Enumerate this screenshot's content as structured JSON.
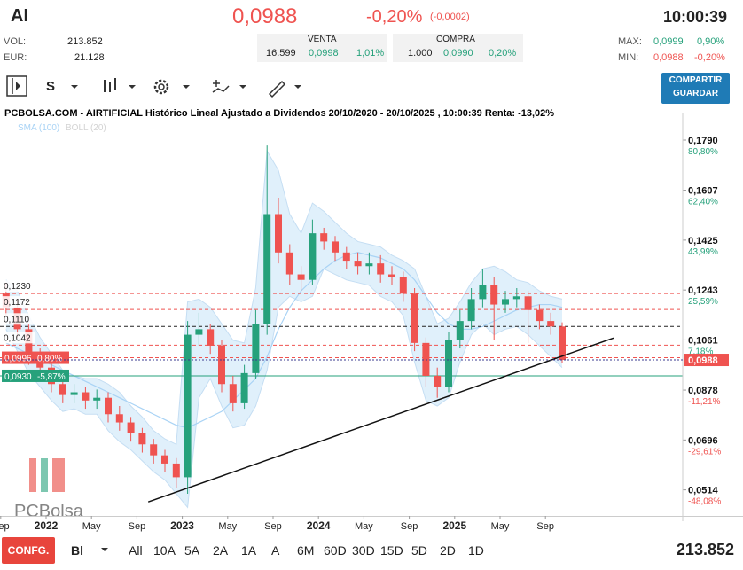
{
  "header": {
    "symbol": "AI",
    "price": "0,0988",
    "change_pct": "-0,20%",
    "change_abs": "(-0,0002)",
    "time": "10:00:39"
  },
  "stats": {
    "vol_label": "VOL:",
    "vol": "213.852",
    "eur_label": "EUR:",
    "eur": "21.128",
    "venta": {
      "label": "VENTA",
      "qty": "16.599",
      "price": "0,0998",
      "pct": "1,01%"
    },
    "compra": {
      "label": "COMPRA",
      "qty": "1.000",
      "price": "0,0990",
      "pct": "0,20%"
    },
    "max": {
      "label": "MAX:",
      "price": "0,0999",
      "pct": "0,90%"
    },
    "min": {
      "label": "MIN:",
      "price": "0,0988",
      "pct": "-0,20%"
    }
  },
  "toolbar": {
    "period": "S",
    "button": [
      "COMPARTIR",
      "GUARDAR"
    ]
  },
  "chart_data": {
    "type": "candlestick",
    "title": "PCBOLSA.COM - AIRTIFICIAL Histórico Lineal Ajustado a Dividendos 20/10/2020 - 20/10/2025 , 10:00:39 Renta: -13,02%",
    "watermark": "PCBolsa",
    "up_color": "#26a17b",
    "down_color": "#ef5350",
    "x": [
      "2021-09",
      "2021-10",
      "2021-11",
      "2021-12",
      "2022-01",
      "2022-02",
      "2022-03",
      "2022-04",
      "2022-05",
      "2022-06",
      "2022-07",
      "2022-08",
      "2022-09",
      "2022-10",
      "2022-11",
      "2022-12",
      "2023-01",
      "2023-02",
      "2023-03",
      "2023-04",
      "2023-05",
      "2023-06",
      "2023-07",
      "2023-08",
      "2023-09",
      "2023-10",
      "2023-11",
      "2023-12",
      "2024-01",
      "2024-02",
      "2024-03",
      "2024-04",
      "2024-05",
      "2024-06",
      "2024-07",
      "2024-08",
      "2024-09",
      "2024-10",
      "2024-11",
      "2024-12",
      "2025-01",
      "2025-02",
      "2025-03",
      "2025-04",
      "2025-05",
      "2025-06",
      "2025-07",
      "2025-08",
      "2025-09",
      "2025-10"
    ],
    "open": [
      0.123,
      0.118,
      0.11,
      0.1,
      0.096,
      0.09,
      0.086,
      0.087,
      0.084,
      0.085,
      0.079,
      0.076,
      0.072,
      0.068,
      0.064,
      0.061,
      0.056,
      0.108,
      0.11,
      0.104,
      0.09,
      0.083,
      0.094,
      0.112,
      0.152,
      0.138,
      0.13,
      0.128,
      0.145,
      0.142,
      0.138,
      0.135,
      0.133,
      0.134,
      0.13,
      0.129,
      0.123,
      0.105,
      0.093,
      0.089,
      0.106,
      0.113,
      0.121,
      0.126,
      0.119,
      0.121,
      0.122,
      0.117,
      0.113,
      0.111
    ],
    "high": [
      0.127,
      0.121,
      0.112,
      0.103,
      0.098,
      0.093,
      0.09,
      0.089,
      0.088,
      0.087,
      0.082,
      0.078,
      0.074,
      0.07,
      0.066,
      0.063,
      0.113,
      0.116,
      0.112,
      0.106,
      0.093,
      0.097,
      0.117,
      0.177,
      0.158,
      0.141,
      0.133,
      0.15,
      0.147,
      0.144,
      0.14,
      0.138,
      0.138,
      0.137,
      0.133,
      0.131,
      0.125,
      0.107,
      0.096,
      0.109,
      0.117,
      0.125,
      0.132,
      0.129,
      0.124,
      0.125,
      0.124,
      0.119,
      0.116,
      0.1125
    ],
    "low": [
      0.115,
      0.107,
      0.097,
      0.093,
      0.087,
      0.083,
      0.083,
      0.081,
      0.081,
      0.076,
      0.073,
      0.069,
      0.065,
      0.061,
      0.058,
      0.052,
      0.05,
      0.104,
      0.101,
      0.087,
      0.08,
      0.081,
      0.092,
      0.108,
      0.134,
      0.126,
      0.124,
      0.126,
      0.139,
      0.135,
      0.132,
      0.13,
      0.13,
      0.127,
      0.126,
      0.12,
      0.102,
      0.089,
      0.085,
      0.087,
      0.103,
      0.11,
      0.118,
      0.106,
      0.116,
      0.118,
      0.105,
      0.11,
      0.108,
      0.0975
    ],
    "close": [
      0.118,
      0.11,
      0.1,
      0.096,
      0.09,
      0.086,
      0.087,
      0.084,
      0.085,
      0.079,
      0.076,
      0.072,
      0.068,
      0.064,
      0.061,
      0.056,
      0.108,
      0.11,
      0.104,
      0.09,
      0.083,
      0.094,
      0.112,
      0.152,
      0.138,
      0.13,
      0.128,
      0.145,
      0.142,
      0.138,
      0.135,
      0.133,
      0.134,
      0.13,
      0.129,
      0.123,
      0.105,
      0.093,
      0.089,
      0.106,
      0.113,
      0.121,
      0.126,
      0.119,
      0.121,
      0.122,
      0.117,
      0.113,
      0.111,
      0.0988
    ],
    "series": [
      {
        "name": "SMA (100)",
        "color": "#a9d3f5",
        "values": [
          0.105,
          0.103,
          0.101,
          0.099,
          0.097,
          0.095,
          0.093,
          0.091,
          0.089,
          0.087,
          0.085,
          0.083,
          0.081,
          0.079,
          0.077,
          0.075,
          0.074,
          0.076,
          0.078,
          0.08,
          0.084,
          0.088,
          0.092,
          0.1,
          0.11,
          0.118,
          0.124,
          0.128,
          0.132,
          0.135,
          0.137,
          0.138,
          0.137,
          0.136,
          0.134,
          0.132,
          0.128,
          0.122,
          0.116,
          0.112,
          0.11,
          0.11,
          0.111,
          0.113,
          0.115,
          0.117,
          0.118,
          0.119,
          0.119,
          0.118
        ]
      },
      {
        "name": "BOLL (20)",
        "color": "#d3d3d3",
        "upper": [
          0.128,
          0.124,
          0.115,
          0.107,
          0.101,
          0.095,
          0.093,
          0.092,
          0.092,
          0.09,
          0.087,
          0.082,
          0.078,
          0.073,
          0.07,
          0.068,
          0.12,
          0.121,
          0.118,
          0.112,
          0.106,
          0.105,
          0.125,
          0.175,
          0.168,
          0.152,
          0.145,
          0.156,
          0.153,
          0.149,
          0.145,
          0.142,
          0.141,
          0.14,
          0.137,
          0.135,
          0.132,
          0.122,
          0.112,
          0.114,
          0.12,
          0.127,
          0.132,
          0.133,
          0.131,
          0.128,
          0.127,
          0.124,
          0.122,
          0.121
        ],
        "lower": [
          0.11,
          0.102,
          0.094,
          0.089,
          0.084,
          0.08,
          0.081,
          0.079,
          0.079,
          0.073,
          0.069,
          0.066,
          0.062,
          0.058,
          0.055,
          0.05,
          0.045,
          0.085,
          0.092,
          0.082,
          0.074,
          0.075,
          0.082,
          0.095,
          0.118,
          0.122,
          0.12,
          0.122,
          0.132,
          0.13,
          0.128,
          0.127,
          0.126,
          0.122,
          0.12,
          0.115,
          0.098,
          0.084,
          0.082,
          0.085,
          0.098,
          0.108,
          0.112,
          0.108,
          0.11,
          0.111,
          0.108,
          0.104,
          0.1,
          0.096
        ]
      }
    ],
    "ylim": [
      0.0419,
      0.1887
    ],
    "yticks": [
      {
        "value": 0.179,
        "label": "0,1790"
      },
      {
        "value": 0.1607,
        "label": "0,1607"
      },
      {
        "value": 0.1425,
        "label": "0,1425"
      },
      {
        "value": 0.1243,
        "label": "0,1243"
      },
      {
        "value": 0.1061,
        "label": "0,1061"
      },
      {
        "value": 0.0878,
        "label": "0,0878"
      },
      {
        "value": 0.0696,
        "label": "0,0696"
      },
      {
        "value": 0.0514,
        "label": "0,0514"
      }
    ],
    "y_percent_labels": [
      "80,80%",
      "62,40%",
      "43,99%",
      "25,59%",
      "7,18%",
      "-11,21%",
      "-29,61%",
      "-48,08%"
    ],
    "xticks": [
      {
        "value": "2021-09",
        "label": "Sep"
      },
      {
        "value": "2022-01",
        "label": "2022"
      },
      {
        "value": "2022-05",
        "label": "May"
      },
      {
        "value": "2022-09",
        "label": "Sep"
      },
      {
        "value": "2023-01",
        "label": "2023"
      },
      {
        "value": "2023-05",
        "label": "May"
      },
      {
        "value": "2023-09",
        "label": "Sep"
      },
      {
        "value": "2024-01",
        "label": "2024"
      },
      {
        "value": "2024-05",
        "label": "May"
      },
      {
        "value": "2024-09",
        "label": "Sep"
      },
      {
        "value": "2025-01",
        "label": "2025"
      },
      {
        "value": "2025-05",
        "label": "May"
      },
      {
        "value": "2025-09",
        "label": "Sep"
      }
    ],
    "levels": [
      {
        "value": 0.123,
        "label": "0,1230",
        "color": "#ef5350"
      },
      {
        "value": 0.1172,
        "label": "0,1172",
        "color": "#ef5350"
      },
      {
        "value": 0.111,
        "label": "0,1110",
        "color": "#222222"
      },
      {
        "value": 0.1042,
        "label": "0,1042",
        "color": "#ef5350"
      },
      {
        "value": 0.0996,
        "label": "0,0996",
        "pct": "0,80%",
        "color": "#ef5350"
      },
      {
        "value": 0.093,
        "label": "0,0930",
        "pct": "-5,87%",
        "color": "#26a17b"
      }
    ],
    "current": {
      "value": 0.0988,
      "label": "0,0988",
      "color": "#ef5350"
    },
    "trendline": {
      "x": [
        "2022-10",
        "2026-03"
      ],
      "y": [
        0.047,
        0.1068
      ]
    }
  },
  "footer": {
    "config": "CONFG.",
    "mode": "Bl",
    "ranges": [
      "All",
      "10A",
      "5A",
      "2A",
      "1A",
      "A",
      "6M",
      "60D",
      "30D",
      "15D",
      "5D",
      "2D",
      "1D"
    ],
    "volume": "213.852"
  }
}
